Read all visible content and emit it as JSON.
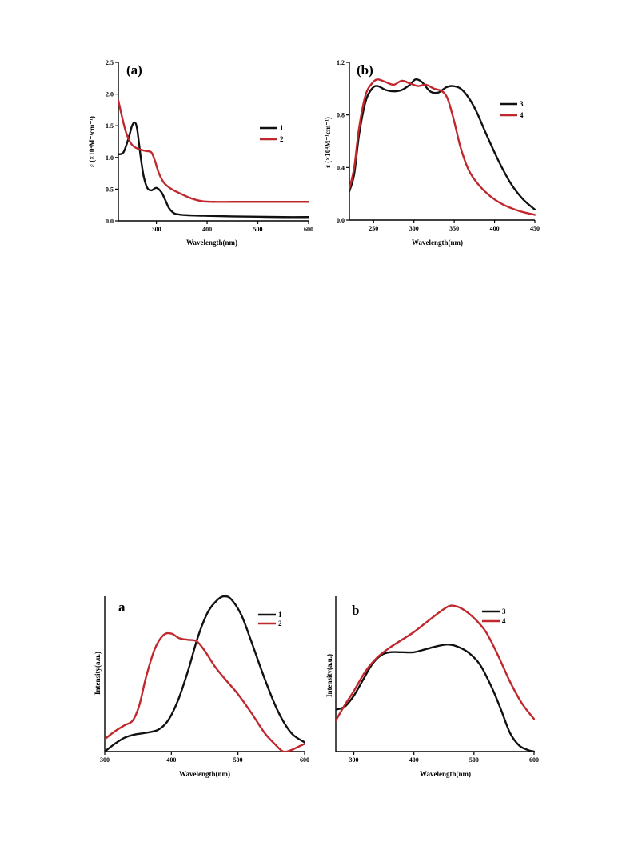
{
  "chart_data": [
    {
      "type": "line",
      "panel_label": "(a)",
      "xlabel": "Wavelength(nm)",
      "ylabel": "ε (×10⁴M⁻¹cm⁻¹)",
      "xlim": [
        225,
        600
      ],
      "ylim": [
        0,
        2.5
      ],
      "xticks": [
        "300",
        "400",
        "500",
        "600"
      ],
      "yticks": [
        "0.0",
        "0.5",
        "1.0",
        "1.5",
        "2.0",
        "2.5"
      ],
      "xtick_values": [
        300,
        400,
        500,
        600
      ],
      "ytick_values": [
        0,
        0.5,
        1.0,
        1.5,
        2.0,
        2.5
      ],
      "grid": false,
      "legend_position": "top-right",
      "series": [
        {
          "name": "1",
          "color": "#111111",
          "x": [
            225,
            235,
            245,
            252,
            258,
            262,
            266,
            270,
            275,
            282,
            290,
            300,
            310,
            318,
            325,
            335,
            345,
            360,
            400,
            450,
            500,
            550,
            600
          ],
          "y": [
            1.05,
            1.08,
            1.3,
            1.5,
            1.55,
            1.45,
            1.2,
            0.95,
            0.7,
            0.52,
            0.48,
            0.52,
            0.45,
            0.32,
            0.2,
            0.12,
            0.1,
            0.09,
            0.08,
            0.07,
            0.065,
            0.06,
            0.06
          ]
        },
        {
          "name": "2",
          "color": "#c0282d",
          "x": [
            225,
            232,
            240,
            250,
            260,
            270,
            280,
            290,
            297,
            305,
            315,
            330,
            350,
            370,
            390,
            410,
            450,
            500,
            550,
            600
          ],
          "y": [
            1.9,
            1.65,
            1.4,
            1.22,
            1.15,
            1.12,
            1.1,
            1.08,
            0.95,
            0.75,
            0.6,
            0.5,
            0.42,
            0.35,
            0.31,
            0.3,
            0.3,
            0.3,
            0.3,
            0.3
          ]
        }
      ]
    },
    {
      "type": "line",
      "panel_label": "(b)",
      "xlabel": "Wavelength(nm)",
      "ylabel": "ε (×10⁴M⁻¹cm⁻¹)",
      "xlim": [
        220,
        450
      ],
      "ylim": [
        0,
        1.2
      ],
      "xticks": [
        "250",
        "300",
        "350",
        "400",
        "450"
      ],
      "yticks": [
        "0.0",
        "0.4",
        "0.8",
        "1.2"
      ],
      "xtick_values": [
        250,
        300,
        350,
        400,
        450
      ],
      "ytick_values": [
        0,
        0.4,
        0.8,
        1.2
      ],
      "grid": false,
      "legend_position": "top-right",
      "series": [
        {
          "name": "3",
          "color": "#111111",
          "x": [
            220,
            226,
            232,
            240,
            248,
            255,
            265,
            275,
            285,
            295,
            302,
            310,
            320,
            330,
            340,
            348,
            358,
            368,
            378,
            390,
            405,
            420,
            435,
            450
          ],
          "y": [
            0.22,
            0.35,
            0.65,
            0.9,
            1.0,
            1.02,
            0.99,
            0.98,
            0.99,
            1.03,
            1.07,
            1.05,
            0.98,
            0.97,
            1.01,
            1.02,
            1.0,
            0.93,
            0.82,
            0.65,
            0.45,
            0.28,
            0.16,
            0.08
          ]
        },
        {
          "name": "4",
          "color": "#c0282d",
          "x": [
            220,
            226,
            232,
            240,
            248,
            255,
            265,
            275,
            285,
            295,
            305,
            315,
            325,
            335,
            342,
            350,
            358,
            368,
            380,
            395,
            410,
            430,
            450
          ],
          "y": [
            0.24,
            0.4,
            0.7,
            0.95,
            1.04,
            1.07,
            1.05,
            1.03,
            1.06,
            1.04,
            1.02,
            1.03,
            1.0,
            0.98,
            0.92,
            0.75,
            0.55,
            0.38,
            0.27,
            0.18,
            0.12,
            0.07,
            0.04
          ]
        }
      ]
    },
    {
      "type": "line",
      "panel_label": "a",
      "xlabel": "Wavelength(nm)",
      "ylabel": "Intensity(a.u.)",
      "xlim": [
        300,
        600
      ],
      "ylim": [
        0,
        1.0
      ],
      "xticks": [
        "300",
        "400",
        "500",
        "600"
      ],
      "xtick_values": [
        300,
        400,
        500,
        600
      ],
      "yticks": [],
      "ytick_values": [],
      "grid": false,
      "legend_position": "top-right",
      "series": [
        {
          "name": "1",
          "color": "#111111",
          "x": [
            300,
            315,
            330,
            345,
            360,
            380,
            395,
            410,
            425,
            440,
            455,
            470,
            480,
            490,
            505,
            520,
            540,
            560,
            580,
            600
          ],
          "y": [
            0.0,
            0.05,
            0.09,
            0.11,
            0.12,
            0.14,
            0.2,
            0.33,
            0.52,
            0.74,
            0.9,
            0.98,
            1.0,
            0.98,
            0.88,
            0.71,
            0.47,
            0.26,
            0.12,
            0.06
          ]
        },
        {
          "name": "2",
          "color": "#c0282d",
          "x": [
            300,
            315,
            330,
            342,
            352,
            362,
            375,
            388,
            400,
            412,
            425,
            438,
            450,
            465,
            480,
            500,
            520,
            540,
            555,
            568,
            580,
            590,
            600
          ],
          "y": [
            0.08,
            0.13,
            0.17,
            0.2,
            0.3,
            0.48,
            0.66,
            0.75,
            0.76,
            0.73,
            0.72,
            0.71,
            0.65,
            0.55,
            0.47,
            0.37,
            0.25,
            0.12,
            0.05,
            0.0,
            0.01,
            0.03,
            0.05
          ]
        }
      ]
    },
    {
      "type": "line",
      "panel_label": "b",
      "xlabel": "Wavelength(nm)",
      "ylabel": "Intensity(a.u.)",
      "xlim": [
        270,
        600
      ],
      "ylim": [
        0,
        1.0
      ],
      "xticks": [
        "300",
        "400",
        "500",
        "600"
      ],
      "xtick_values": [
        300,
        400,
        500,
        600
      ],
      "yticks": [],
      "ytick_values": [],
      "grid": false,
      "legend_position": "top-right",
      "series": [
        {
          "name": "3",
          "color": "#111111",
          "x": [
            270,
            285,
            300,
            315,
            330,
            345,
            360,
            380,
            400,
            420,
            440,
            455,
            470,
            490,
            510,
            530,
            545,
            560,
            575,
            590,
            600
          ],
          "y": [
            0.27,
            0.29,
            0.36,
            0.46,
            0.56,
            0.62,
            0.64,
            0.64,
            0.64,
            0.66,
            0.68,
            0.69,
            0.68,
            0.64,
            0.56,
            0.41,
            0.27,
            0.12,
            0.04,
            0.01,
            0.0
          ]
        },
        {
          "name": "4",
          "color": "#c0282d",
          "x": [
            270,
            285,
            300,
            320,
            340,
            360,
            380,
            400,
            420,
            440,
            455,
            465,
            480,
            500,
            520,
            540,
            560,
            580,
            600
          ],
          "y": [
            0.2,
            0.3,
            0.39,
            0.52,
            0.61,
            0.67,
            0.72,
            0.77,
            0.83,
            0.89,
            0.93,
            0.94,
            0.92,
            0.86,
            0.77,
            0.62,
            0.45,
            0.31,
            0.21
          ]
        }
      ]
    }
  ]
}
